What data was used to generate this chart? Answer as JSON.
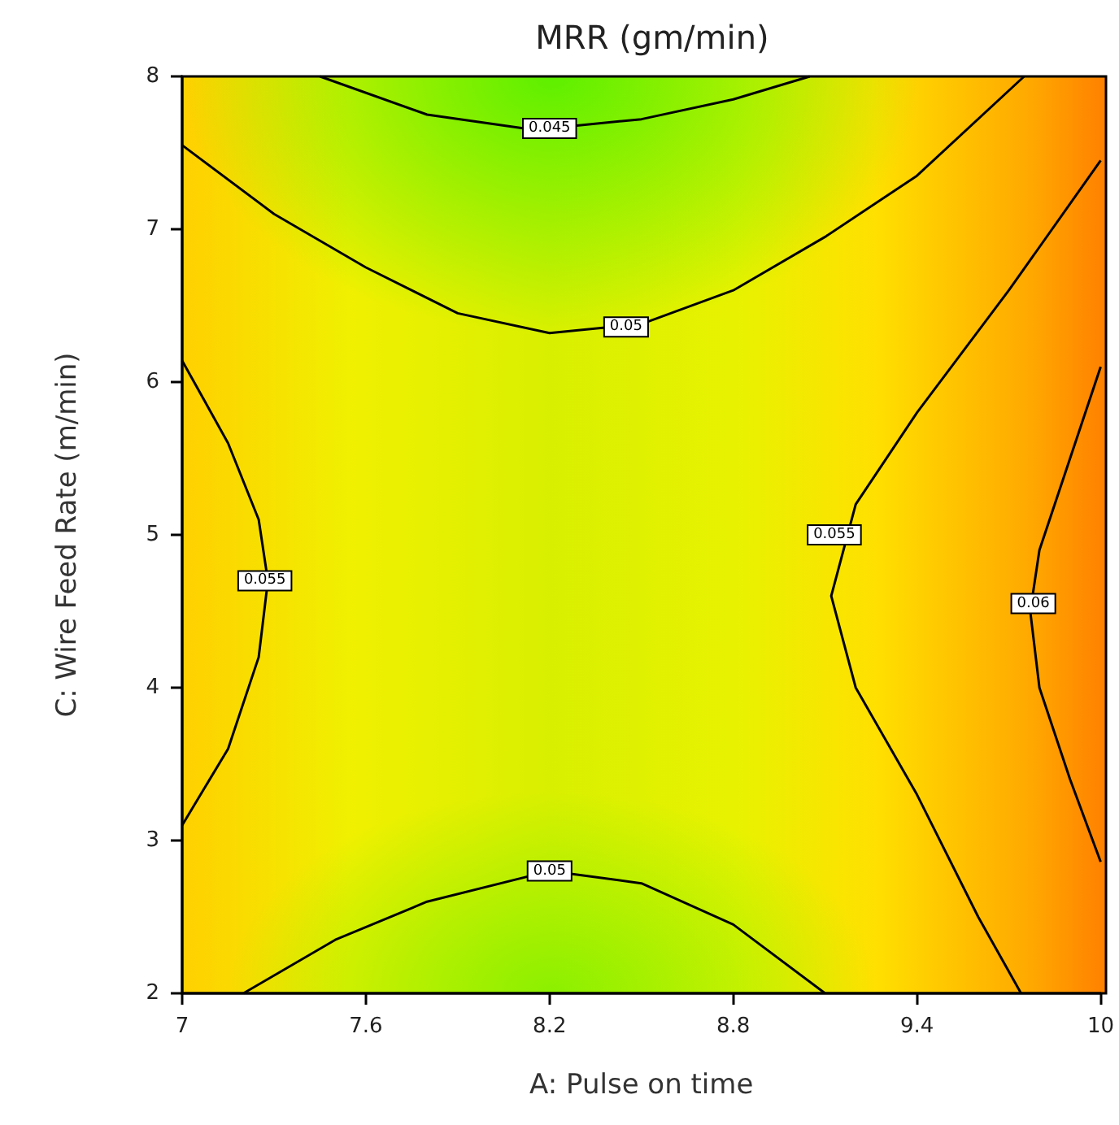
{
  "chart_data": {
    "type": "line",
    "title": "MRR (gm/min)",
    "xlabel": "A: Pulse on time",
    "ylabel": "C: Wire Feed Rate (m/min)",
    "xlim": [
      7,
      10
    ],
    "xticks": [
      7,
      7.6,
      8.2,
      8.8,
      9.4,
      10
    ],
    "ylim": [
      2,
      8
    ],
    "yticks": [
      2,
      3,
      4,
      5,
      6,
      7,
      8
    ],
    "grid": false,
    "marker": "none",
    "line_style": "solid",
    "series": [
      {
        "color": "#000000",
        "x": [
          7.45,
          7.8,
          8.15,
          8.5,
          8.8,
          9.05
        ],
        "values": [
          8,
          7.75,
          7.65,
          7.72,
          7.85,
          8
        ]
      },
      {
        "color": "#000000",
        "x": [
          7,
          7.3,
          7.6,
          7.9,
          8.2,
          8.5,
          8.8,
          9.1,
          9.4,
          9.75
        ],
        "values": [
          7.55,
          7.1,
          6.75,
          6.45,
          6.32,
          6.38,
          6.6,
          6.95,
          7.35,
          8
        ]
      },
      {
        "color": "#000000",
        "x": [
          7.2,
          7.5,
          7.8,
          8.2,
          8.5,
          8.8,
          9.1
        ],
        "values": [
          2,
          2.35,
          2.6,
          2.8,
          2.72,
          2.45,
          2
        ]
      },
      {
        "color": "#000000",
        "x": [
          7,
          7.15,
          7.25,
          7.28,
          7.25,
          7.15,
          7
        ],
        "values": [
          6.14,
          5.6,
          5.1,
          4.7,
          4.2,
          3.6,
          3.1
        ]
      },
      {
        "color": "#000000",
        "x": [
          10,
          9.7,
          9.4,
          9.2,
          9.12,
          9.2,
          9.4,
          9.6,
          9.74
        ],
        "values": [
          7.45,
          6.6,
          5.8,
          5.2,
          4.6,
          4,
          3.3,
          2.5,
          2
        ]
      },
      {
        "color": "#000000",
        "x": [
          10,
          9.9,
          9.8,
          9.77,
          9.8,
          9.9,
          10
        ],
        "values": [
          6.1,
          5.5,
          4.9,
          4.5,
          4,
          3.4,
          2.86
        ]
      }
    ],
    "annotations": [
      {
        "text": "0.045",
        "x": 8.2,
        "y": 7.66
      },
      {
        "text": "0.05",
        "x": 8.45,
        "y": 6.36
      },
      {
        "text": "0.05",
        "x": 8.2,
        "y": 2.8
      },
      {
        "text": "0.055",
        "x": 7.27,
        "y": 4.7
      },
      {
        "text": "0.055",
        "x": 9.13,
        "y": 5.0
      },
      {
        "text": "0.06",
        "x": 9.78,
        "y": 4.55
      }
    ]
  }
}
